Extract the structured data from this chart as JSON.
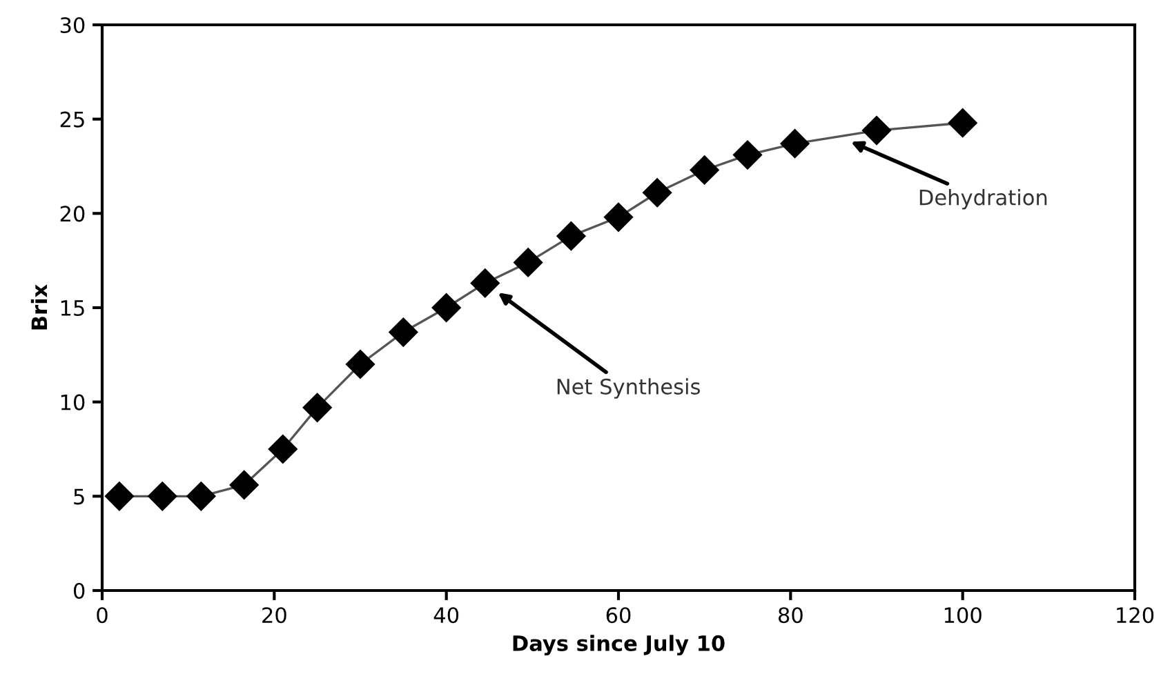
{
  "chart_data": {
    "type": "line",
    "xlabel": "Days since July 10",
    "ylabel": "Brix",
    "x": [
      2,
      7,
      11.5,
      16.5,
      21,
      25,
      30,
      35,
      40,
      44.5,
      49.5,
      54.5,
      60,
      64.5,
      70,
      75,
      80.5,
      90,
      100
    ],
    "series": [
      {
        "color": "#000000",
        "values": [
          5.0,
          5.0,
          5.0,
          5.6,
          7.5,
          9.7,
          12.0,
          13.7,
          15.0,
          16.3,
          17.4,
          18.8,
          19.8,
          21.1,
          22.3,
          23.1,
          23.7,
          24.4,
          24.8
        ]
      }
    ],
    "marker": "diamond",
    "line_style": "solid",
    "xlim": [
      0,
      120
    ],
    "ylim": [
      0,
      30
    ],
    "xticks": [
      0,
      20,
      40,
      60,
      80,
      100,
      120
    ],
    "yticks": [
      0,
      5,
      10,
      15,
      20,
      25,
      30
    ],
    "grid": false,
    "legend": false,
    "annotations": [
      {
        "text": "Net Synthesis",
        "x": 46,
        "y": 15.8
      },
      {
        "text": "Dehydration",
        "x": 87,
        "y": 23.8
      }
    ]
  }
}
